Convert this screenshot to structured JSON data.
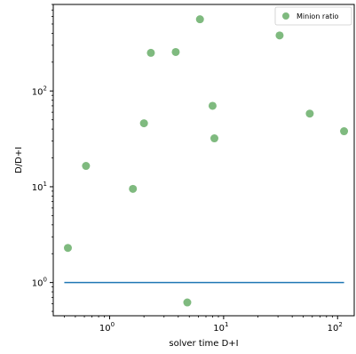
{
  "chart_data": {
    "type": "scatter",
    "xscale": "log",
    "yscale": "log",
    "xlim": [
      0.32,
      140
    ],
    "ylim": [
      0.45,
      800
    ],
    "xlabel": "solver time D+I",
    "ylabel": "D/D+I",
    "grid": false,
    "legend_position": "upper right",
    "x_ticks": [
      {
        "value": 1,
        "base": "10",
        "exp": "0"
      },
      {
        "value": 10,
        "base": "10",
        "exp": "1"
      },
      {
        "value": 100,
        "base": "10",
        "exp": "2"
      }
    ],
    "y_ticks": [
      {
        "value": 1,
        "base": "10",
        "exp": "0"
      },
      {
        "value": 10,
        "base": "10",
        "exp": "1"
      },
      {
        "value": 100,
        "base": "10",
        "exp": "2"
      }
    ],
    "series": [
      {
        "name": "Minion ratio",
        "kind": "scatter",
        "color": "#7fba7f",
        "points": [
          {
            "x": 0.43,
            "y": 2.3
          },
          {
            "x": 0.62,
            "y": 16.5
          },
          {
            "x": 1.6,
            "y": 9.5
          },
          {
            "x": 2.0,
            "y": 46
          },
          {
            "x": 2.3,
            "y": 250
          },
          {
            "x": 3.8,
            "y": 255
          },
          {
            "x": 4.8,
            "y": 0.62
          },
          {
            "x": 6.2,
            "y": 560
          },
          {
            "x": 8.0,
            "y": 70
          },
          {
            "x": 8.3,
            "y": 32
          },
          {
            "x": 31,
            "y": 380
          },
          {
            "x": 57,
            "y": 58
          },
          {
            "x": 114,
            "y": 38
          }
        ]
      },
      {
        "kind": "line",
        "color": "#1f77b4",
        "points": [
          {
            "x": 0.4,
            "y": 1
          },
          {
            "x": 114,
            "y": 1
          }
        ]
      }
    ]
  }
}
